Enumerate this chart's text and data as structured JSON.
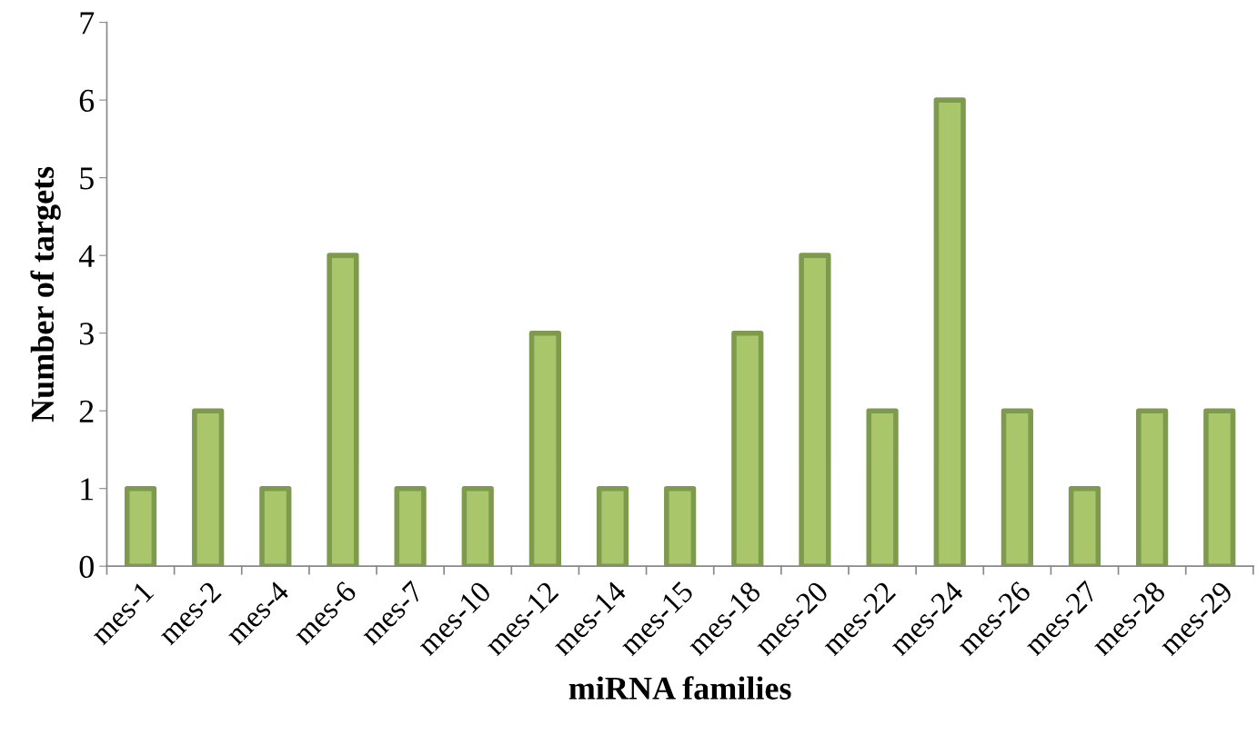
{
  "chart_data": {
    "type": "bar",
    "xlabel": "miRNA families",
    "ylabel": "Number of targets",
    "categories": [
      "mes-1",
      "mes-2",
      "mes-4",
      "mes-6",
      "mes-7",
      "mes-10",
      "mes-12",
      "mes-14",
      "mes-15",
      "mes-18",
      "mes-20",
      "mes-22",
      "mes-24",
      "mes-26",
      "mes-27",
      "mes-28",
      "mes-29"
    ],
    "values": [
      1,
      2,
      1,
      4,
      1,
      1,
      3,
      1,
      1,
      3,
      4,
      2,
      6,
      2,
      1,
      2,
      2
    ],
    "color": "#a9c66b",
    "ylim": [
      0,
      7
    ],
    "yticks": [
      0,
      1,
      2,
      3,
      4,
      5,
      6,
      7
    ],
    "grid": false,
    "legend": false
  }
}
